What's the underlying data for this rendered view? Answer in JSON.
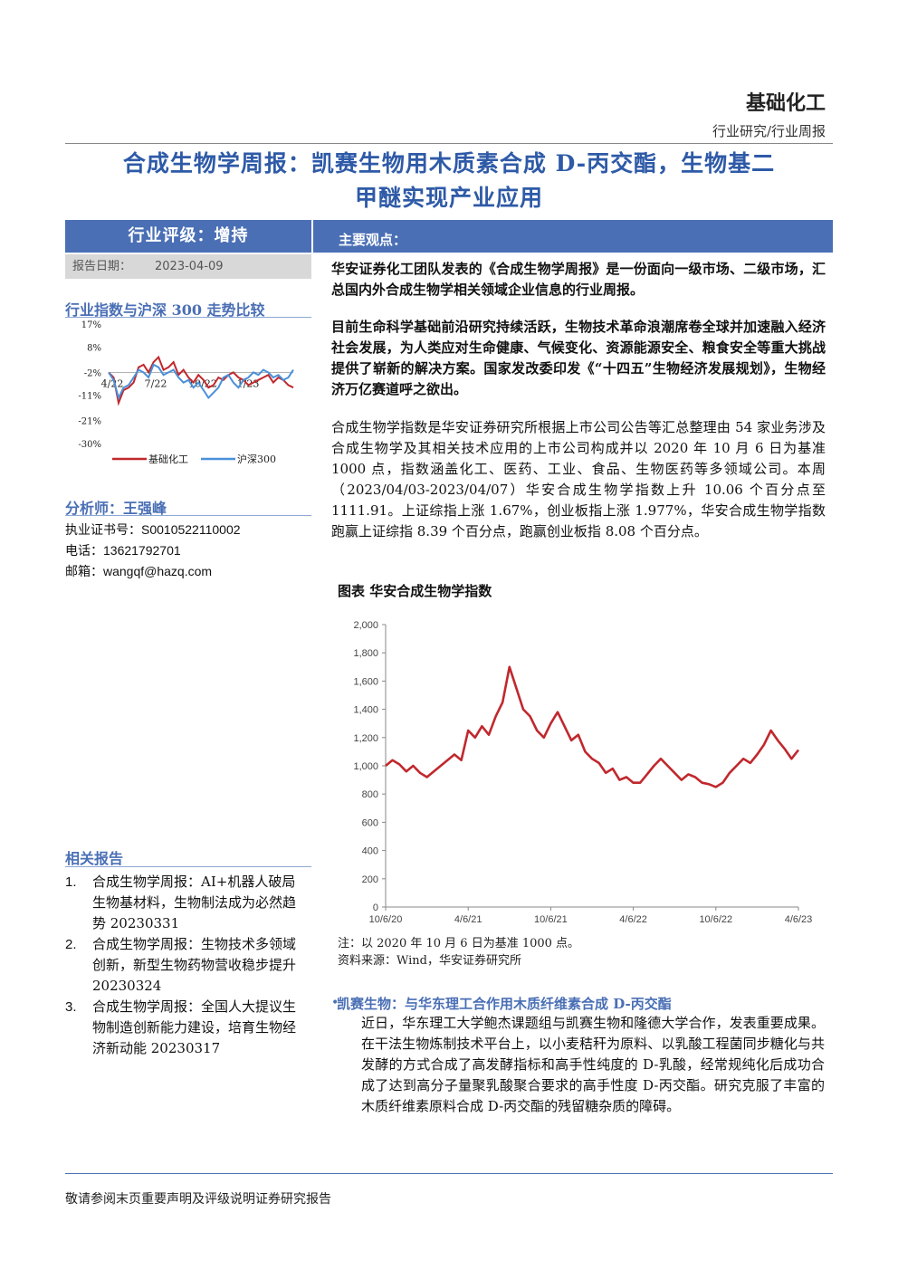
{
  "header": {
    "sector": "基础化工",
    "report_type": "行业研究/行业周报"
  },
  "title": {
    "line1": "合成生物学周报：凯赛生物用木质素合成 D-丙交酯，生物基二",
    "line2": "甲醚实现产业应用"
  },
  "rating": {
    "label": "行业评级：增持",
    "date_label": "报告日期：",
    "date_value": "2023-04-09"
  },
  "index_compare": {
    "title": "行业指数与沪深 300 走势比较",
    "chart_data": {
      "type": "line",
      "y_ticks": [
        "17%",
        "8%",
        "-2%",
        "-11%",
        "-21%",
        "-30%"
      ],
      "ylim": [
        -30,
        17
      ],
      "x_ticks": [
        "4/22",
        "7/22",
        "10/22",
        "1/23"
      ],
      "series": [
        {
          "name": "基础化工",
          "color": "#c0282d",
          "values": [
            -2,
            -4,
            -14,
            -9,
            -8,
            -6,
            0,
            1,
            -2,
            2,
            4,
            -1,
            0,
            2,
            -3,
            -1,
            -4,
            -6,
            -3,
            -5,
            -8,
            -7,
            -4,
            -5,
            -3,
            -2,
            -4,
            -5,
            -7,
            -6,
            -5,
            -4,
            -3,
            -6,
            -4,
            -5,
            -7,
            -8
          ]
        },
        {
          "name": "沪深300",
          "color": "#4a90d9",
          "values": [
            -2,
            -5,
            -12,
            -8,
            -7,
            -4,
            -1,
            -2,
            -4,
            1,
            0,
            -3,
            -2,
            -1,
            -4,
            -6,
            -5,
            -8,
            -6,
            -9,
            -12,
            -10,
            -8,
            -4,
            -3,
            -6,
            -8,
            -5,
            -4,
            -2,
            -3,
            -1,
            -2,
            -4,
            -3,
            -5,
            -4,
            -1
          ]
        }
      ]
    }
  },
  "analyst": {
    "section_title": "分析师：王强峰",
    "license_label": "执业证书号：",
    "license_value": "S0010522110002",
    "phone_label": "电话：",
    "phone_value": "13621792701",
    "email_label": "邮箱：",
    "email_value": "wangqf@hazq.com"
  },
  "related": {
    "section_title": "相关报告",
    "items": [
      {
        "num": "1.",
        "text": "合成生物学周报：AI+机器人破局生物基材料，生物制法成为必然趋势 20230331"
      },
      {
        "num": "2.",
        "text": "合成生物学周报：生物技术多领域创新，新型生物药物营收稳步提升 20230324"
      },
      {
        "num": "3.",
        "text": "合成生物学周报：全国人大提议生物制造创新能力建设，培育生物经济新动能 20230317"
      }
    ]
  },
  "main": {
    "header": "主要观点：",
    "para1": "华安证券化工团队发表的《合成生物学周报》是一份面向一级市场、二级市场，汇总国内外合成生物学相关领域企业信息的行业周报。",
    "para2": "目前生命科学基础前沿研究持续活跃，生物技术革命浪潮席卷全球并加速融入经济社会发展，为人类应对生命健康、气候变化、资源能源安全、粮食安全等重大挑战提供了崭新的解决方案。国家发改委印发《“十四五”生物经济发展规划》，生物经济万亿赛道呼之欲出。",
    "para3": "合成生物学指数是华安证券研究所根据上市公司公告等汇总整理由 54 家业务涉及合成生物学及其相关技术应用的上市公司构成并以 2020 年 10 月 6 日为基准 1000 点，指数涵盖化工、医药、工业、食品、生物医药等多领域公司。本周（2023/04/03-2023/04/07）华安合成生物学指数上升 10.06 个百分点至 1111.91。上证综指上涨 1.67%，创业板指上涨 1.977%，华安合成生物学指数跑赢上证综指 8.39 个百分点，跑赢创业板指 8.08 个百分点。",
    "figure_title": "图表 华安合成生物学指数",
    "figure_note": "注：以 2020 年 10 月 6 日为基准 1000 点。",
    "figure_source": "资料来源：Wind，华安证券研究所",
    "bullet_title": "凯赛生物：与华东理工合作用木质纤维素合成 D-丙交酯",
    "bullet_text": "近日，华东理工大学鲍杰课题组与凯赛生物和隆德大学合作，发表重要成果。在干法生物炼制技术平台上，以小麦秸秆为原料、以乳酸工程菌同步糖化与共发酵的方式合成了高发酵指标和高手性纯度的 D-乳酸，经常规纯化后成功合成了达到高分子量聚乳酸聚合要求的高手性度 D-丙交酯。研究克服了丰富的木质纤维素原料合成 D-丙交酯的残留糖杂质的障碍。"
  },
  "chart_data": {
    "type": "line",
    "title": "图表 华安合成生物学指数",
    "ylim": [
      0,
      2000
    ],
    "y_ticks": [
      "0",
      "200",
      "400",
      "600",
      "800",
      "1,000",
      "1,200",
      "1,400",
      "1,600",
      "1,800",
      "2,000"
    ],
    "x_ticks": [
      "10/6/20",
      "4/6/21",
      "10/6/21",
      "4/6/22",
      "10/6/22",
      "4/6/23"
    ],
    "series": [
      {
        "name": "华安合成生物学指数",
        "color": "#c0282d",
        "x_months": [
          0,
          0.5,
          1,
          1.5,
          2,
          2.5,
          3,
          3.5,
          4,
          4.5,
          5,
          5.5,
          6,
          6.5,
          7,
          7.5,
          8,
          8.5,
          9,
          9.5,
          10,
          10.5,
          11,
          11.5,
          12,
          12.5,
          13,
          13.5,
          14,
          14.5,
          15,
          15.5,
          16,
          16.5,
          17,
          17.5,
          18,
          18.5,
          19,
          19.5,
          20,
          20.5,
          21,
          21.5,
          22,
          22.5,
          23,
          23.5,
          24,
          24.5,
          25,
          25.5,
          26,
          26.5,
          27,
          27.5,
          28,
          28.5,
          29,
          29.5,
          30
        ],
        "values": [
          1000,
          1040,
          1010,
          960,
          1000,
          950,
          920,
          960,
          1000,
          1040,
          1080,
          1040,
          1250,
          1200,
          1280,
          1220,
          1350,
          1450,
          1700,
          1550,
          1400,
          1350,
          1250,
          1200,
          1300,
          1380,
          1280,
          1180,
          1220,
          1100,
          1050,
          1020,
          950,
          980,
          900,
          920,
          880,
          880,
          940,
          1000,
          1050,
          1000,
          950,
          900,
          940,
          920,
          880,
          870,
          850,
          880,
          950,
          1000,
          1050,
          1020,
          1080,
          1150,
          1250,
          1180,
          1120,
          1050,
          1111.91
        ]
      }
    ]
  },
  "footer": {
    "text": "敬请参阅末页重要声明及评级说明证券研究报告"
  }
}
